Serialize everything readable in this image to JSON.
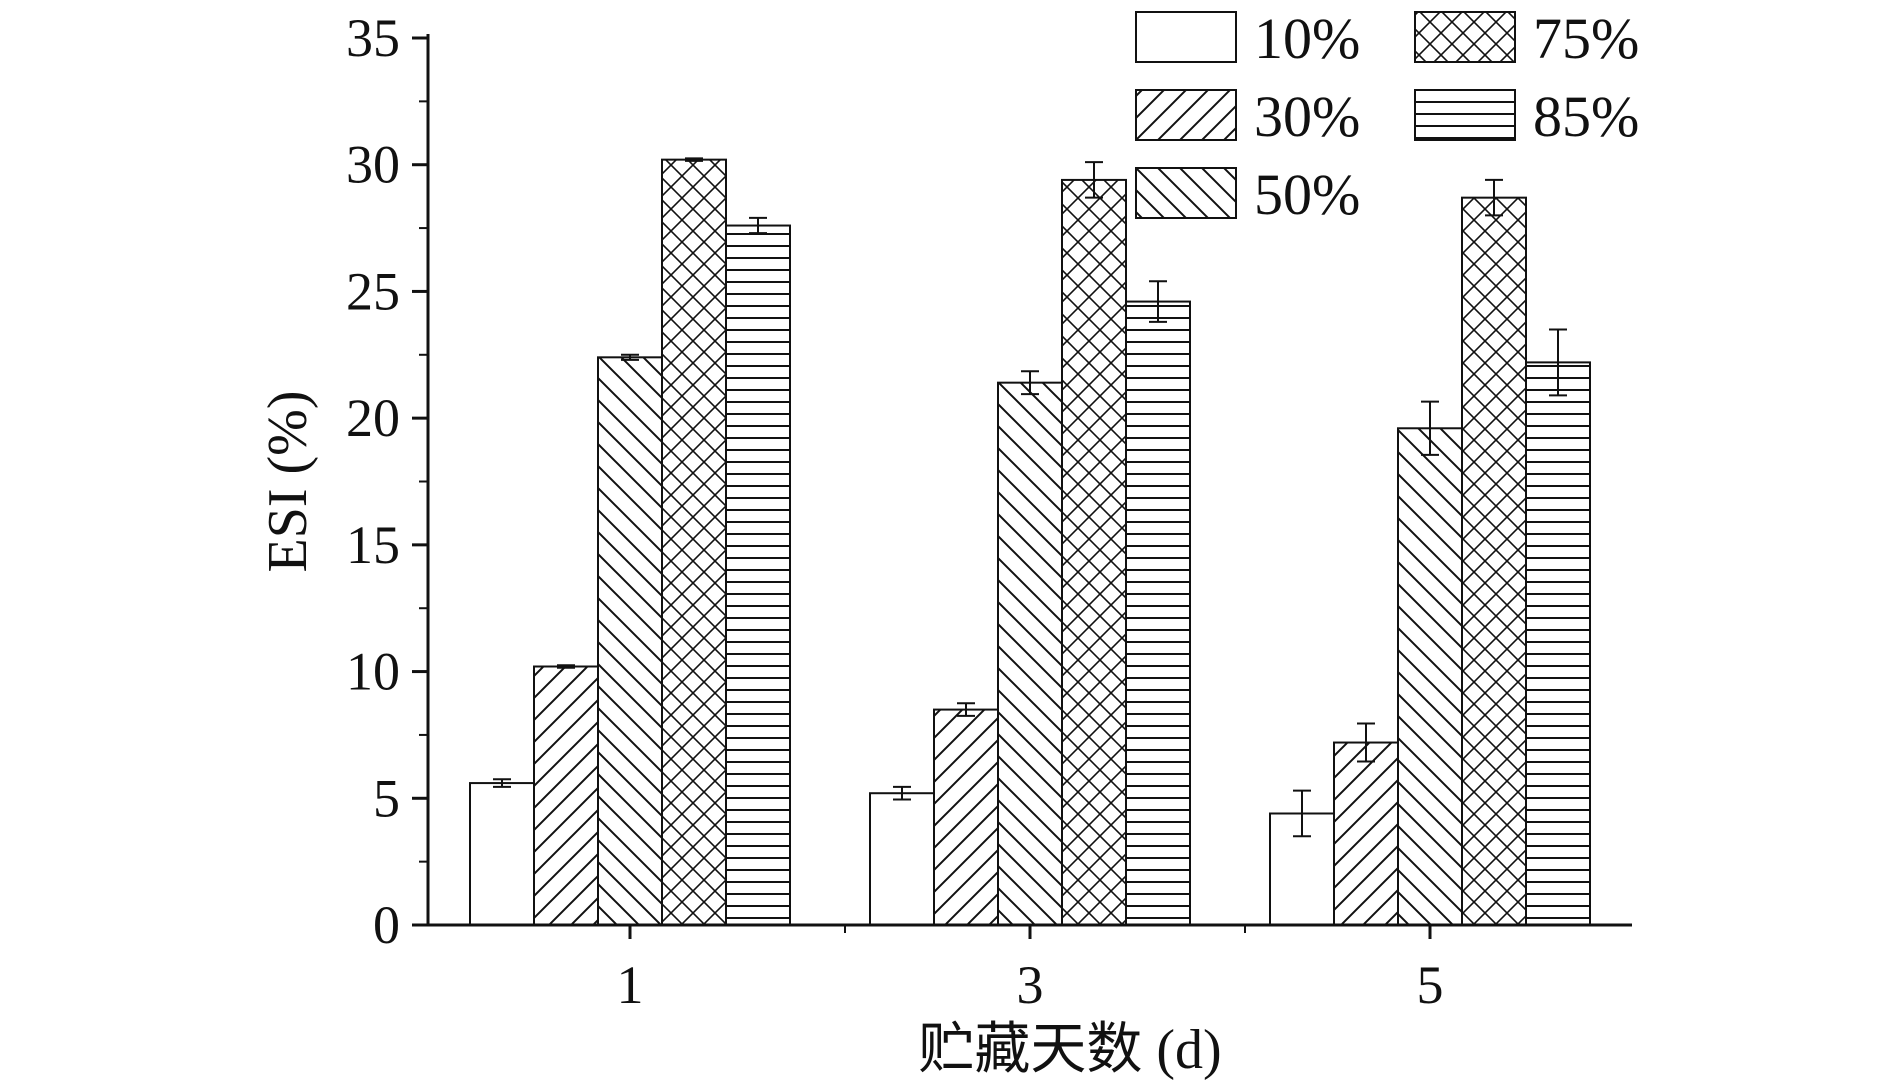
{
  "chart_data": {
    "type": "bar",
    "title": "",
    "xlabel": "贮藏天数 (d)",
    "ylabel": "ESI (%)",
    "categories": [
      "1",
      "3",
      "5"
    ],
    "ylim": [
      0,
      35
    ],
    "yticks": [
      0,
      5,
      10,
      15,
      20,
      25,
      30,
      35
    ],
    "grid": false,
    "legend_position": "top-right",
    "error_bars": true,
    "series": [
      {
        "name": "10%",
        "pattern": "none",
        "values": [
          5.6,
          5.2,
          4.4
        ],
        "errors": [
          0.15,
          0.25,
          0.9
        ]
      },
      {
        "name": "30%",
        "pattern": "diag-up",
        "values": [
          10.2,
          8.5,
          7.2
        ],
        "errors": [
          0.05,
          0.25,
          0.75
        ]
      },
      {
        "name": "50%",
        "pattern": "diag-down",
        "values": [
          22.4,
          21.4,
          19.6
        ],
        "errors": [
          0.1,
          0.45,
          1.05
        ]
      },
      {
        "name": "75%",
        "pattern": "crosshatch",
        "values": [
          30.2,
          29.4,
          28.7
        ],
        "errors": [
          0.05,
          0.7,
          0.7
        ]
      },
      {
        "name": "85%",
        "pattern": "horizontal",
        "values": [
          27.6,
          24.6,
          22.2
        ],
        "errors": [
          0.3,
          0.8,
          1.3
        ]
      }
    ]
  }
}
